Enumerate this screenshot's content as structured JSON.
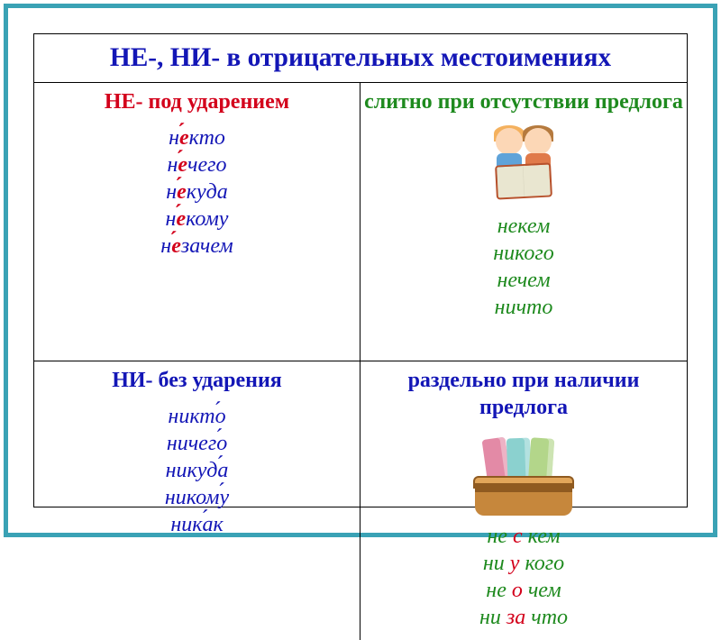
{
  "colors": {
    "outer_border": "#3aa2b5",
    "title": "#1316b6",
    "red": "#d3001b",
    "green": "#1e8a1e",
    "blue": "#1316b6",
    "stress_letter": "#d3001b",
    "word_font_size_pt": 18,
    "heading_font_size_pt": 18,
    "title_font_size_pt": 22
  },
  "title": "НЕ-, НИ- в отрицательных местоимениях",
  "cells": {
    "top_left": {
      "heading": "НЕ- под ударением",
      "heading_color": "red",
      "words_color": "blue",
      "words_stressed": [
        {
          "pre": "н",
          "stress": "е",
          "post": "кто"
        },
        {
          "pre": "н",
          "stress": "е",
          "post": "чего"
        },
        {
          "pre": "н",
          "stress": "е",
          "post": "куда"
        },
        {
          "pre": "н",
          "stress": "е",
          "post": "кому"
        },
        {
          "pre": "н",
          "stress": "е",
          "post": "зачем"
        }
      ]
    },
    "top_right": {
      "heading": "слитно при отсутствии предлога",
      "heading_color": "green",
      "words_color": "green",
      "words_plain": [
        "некем",
        "никого",
        "нечем",
        "ничто"
      ]
    },
    "bottom_left": {
      "heading": "НИ- без ударения",
      "heading_color": "blue",
      "words_color": "blue",
      "words_stressed": [
        {
          "pre": "никт",
          "stress": "о",
          "post": ""
        },
        {
          "pre": "ничег",
          "stress": "о",
          "post": ""
        },
        {
          "pre": "никуд",
          "stress": "а",
          "post": ""
        },
        {
          "pre": "ником",
          "stress": "у",
          "post": ""
        },
        {
          "pre": "ник",
          "stress": "а",
          "post": "к"
        }
      ]
    },
    "bottom_right": {
      "heading": "раздельно при наличии предлога",
      "heading_color": "blue",
      "words": [
        [
          {
            "t": "не ",
            "c": "green"
          },
          {
            "t": "с",
            "c": "red"
          },
          {
            "t": " кем",
            "c": "green"
          }
        ],
        [
          {
            "t": "ни ",
            "c": "green"
          },
          {
            "t": "у",
            "c": "red"
          },
          {
            "t": " кого",
            "c": "green"
          }
        ],
        [
          {
            "t": "не ",
            "c": "green"
          },
          {
            "t": "о",
            "c": "red"
          },
          {
            "t": " чем",
            "c": "green"
          }
        ],
        [
          {
            "t": "ни ",
            "c": "green"
          },
          {
            "t": "за",
            "c": "red"
          },
          {
            "t": " что",
            "c": "green"
          }
        ]
      ]
    }
  }
}
